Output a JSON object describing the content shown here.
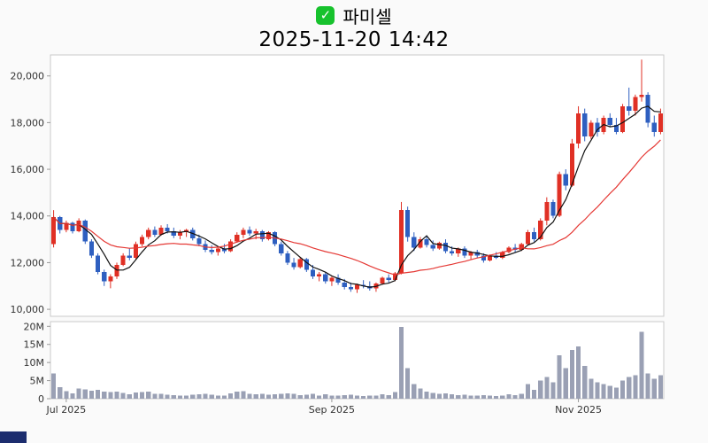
{
  "header": {
    "icon_glyph": "✓"
  },
  "colors": {
    "checkbox": "#17c22d",
    "corner_fragment": "#1c2d6e"
  },
  "chart_data": {
    "type": "candlestick",
    "title": "파미셀",
    "subtitle": "2025-11-20 14:42",
    "price_axis": {
      "min": 9700,
      "max": 20900,
      "ticks": [
        10000,
        12000,
        14000,
        16000,
        18000,
        20000
      ],
      "tick_labels": [
        "10,000",
        "12,000",
        "14,000",
        "16,000",
        "18,000",
        "20,000"
      ]
    },
    "volume_axis": {
      "unit": "M",
      "max": 21.3,
      "ticks": [
        0,
        5,
        10,
        15,
        20
      ],
      "tick_labels": [
        "0",
        "5M",
        "10M",
        "15M",
        "20M"
      ]
    },
    "x_ticks": [
      {
        "label": "Jul 2025",
        "index": 2
      },
      {
        "label": "Sep 2025",
        "index": 44
      },
      {
        "label": "Nov 2025",
        "index": 83
      }
    ],
    "ma_lines": [
      {
        "period": 5,
        "color": "#111111"
      },
      {
        "period": 20,
        "color": "#e53935"
      }
    ],
    "colors": {
      "up": "#e03025",
      "down": "#2e5fc0",
      "volume": "#9aa0b4",
      "plot_border": "#c9c9c9",
      "grid": "none"
    },
    "legend": "none",
    "candles_format": [
      "open",
      "high",
      "low",
      "close",
      "volume_millions"
    ],
    "candles": [
      [
        12800,
        14250,
        12650,
        13950,
        7.0
      ],
      [
        13950,
        14000,
        13250,
        13400,
        3.2
      ],
      [
        13400,
        13800,
        13300,
        13700,
        2.1
      ],
      [
        13700,
        13750,
        13250,
        13350,
        1.5
      ],
      [
        13350,
        13900,
        13300,
        13800,
        2.8
      ],
      [
        13800,
        13850,
        12800,
        12900,
        2.6
      ],
      [
        12900,
        13000,
        12200,
        12300,
        2.2
      ],
      [
        12300,
        12400,
        11500,
        11600,
        2.4
      ],
      [
        11600,
        11700,
        11000,
        11200,
        2.0
      ],
      [
        11200,
        11500,
        10900,
        11400,
        1.8
      ],
      [
        11400,
        12000,
        11300,
        11900,
        1.9
      ],
      [
        11900,
        12400,
        11850,
        12300,
        1.6
      ],
      [
        12300,
        12600,
        12100,
        12200,
        1.2
      ],
      [
        12200,
        12900,
        12150,
        12800,
        1.7
      ],
      [
        12800,
        13200,
        12700,
        13100,
        1.8
      ],
      [
        13100,
        13500,
        13000,
        13400,
        1.9
      ],
      [
        13400,
        13550,
        13100,
        13200,
        1.3
      ],
      [
        13200,
        13600,
        13150,
        13500,
        1.4
      ],
      [
        13500,
        13650,
        13250,
        13350,
        1.1
      ],
      [
        13350,
        13500,
        13050,
        13150,
        1.0
      ],
      [
        13150,
        13400,
        13000,
        13300,
        0.9
      ],
      [
        13300,
        13450,
        13100,
        13400,
        0.8
      ],
      [
        13400,
        13500,
        12950,
        13050,
        1.1
      ],
      [
        13050,
        13200,
        12700,
        12800,
        1.2
      ],
      [
        12800,
        12950,
        12450,
        12550,
        1.3
      ],
      [
        12550,
        12750,
        12350,
        12450,
        1.1
      ],
      [
        12450,
        12650,
        12300,
        12600,
        0.9
      ],
      [
        12600,
        12800,
        12400,
        12500,
        0.8
      ],
      [
        12500,
        13000,
        12450,
        12900,
        1.5
      ],
      [
        12900,
        13300,
        12850,
        13200,
        1.9
      ],
      [
        13200,
        13500,
        13050,
        13400,
        2.1
      ],
      [
        13400,
        13550,
        13150,
        13250,
        1.4
      ],
      [
        13250,
        13450,
        13000,
        13350,
        1.2
      ],
      [
        13350,
        13400,
        12900,
        13000,
        1.3
      ],
      [
        13000,
        13350,
        12950,
        13300,
        1.1
      ],
      [
        13300,
        13350,
        12700,
        12800,
        1.2
      ],
      [
        12800,
        12900,
        12300,
        12400,
        1.4
      ],
      [
        12400,
        12500,
        11900,
        12000,
        1.5
      ],
      [
        12000,
        12200,
        11700,
        11800,
        1.3
      ],
      [
        11800,
        12250,
        11750,
        12150,
        1.0
      ],
      [
        12150,
        12200,
        11600,
        11700,
        1.1
      ],
      [
        11700,
        11900,
        11300,
        11400,
        1.3
      ],
      [
        11400,
        11600,
        11200,
        11500,
        0.9
      ],
      [
        11500,
        11600,
        11100,
        11200,
        1.2
      ],
      [
        11200,
        11400,
        11000,
        11350,
        0.9
      ],
      [
        11350,
        11500,
        11050,
        11150,
        0.8
      ],
      [
        11150,
        11300,
        10850,
        10950,
        1.0
      ],
      [
        10950,
        11150,
        10750,
        10850,
        1.1
      ],
      [
        10850,
        11100,
        10700,
        11050,
        0.9
      ],
      [
        11050,
        11250,
        10900,
        11000,
        0.7
      ],
      [
        11000,
        11200,
        10800,
        10900,
        0.8
      ],
      [
        10900,
        11150,
        10750,
        11100,
        0.9
      ],
      [
        11100,
        11400,
        11050,
        11350,
        1.2
      ],
      [
        11350,
        11500,
        11150,
        11250,
        1.0
      ],
      [
        11250,
        11600,
        11200,
        11550,
        1.8
      ],
      [
        11550,
        14600,
        11500,
        14250,
        19.8
      ],
      [
        14250,
        14400,
        12900,
        13100,
        8.5
      ],
      [
        13100,
        13300,
        12500,
        12650,
        4.0
      ],
      [
        12650,
        13100,
        12600,
        13000,
        2.8
      ],
      [
        13000,
        13150,
        12650,
        12750,
        2.0
      ],
      [
        12750,
        12950,
        12500,
        12600,
        1.6
      ],
      [
        12600,
        12900,
        12550,
        12850,
        1.4
      ],
      [
        12850,
        13000,
        12400,
        12500,
        1.5
      ],
      [
        12500,
        12700,
        12300,
        12400,
        1.2
      ],
      [
        12400,
        12650,
        12250,
        12600,
        1.0
      ],
      [
        12600,
        12700,
        12200,
        12300,
        1.1
      ],
      [
        12300,
        12500,
        12150,
        12450,
        0.9
      ],
      [
        12450,
        12550,
        12200,
        12300,
        0.8
      ],
      [
        12300,
        12400,
        12000,
        12100,
        1.0
      ],
      [
        12100,
        12350,
        12050,
        12300,
        0.9
      ],
      [
        12300,
        12450,
        12150,
        12200,
        0.7
      ],
      [
        12200,
        12500,
        12150,
        12450,
        0.9
      ],
      [
        12450,
        12700,
        12400,
        12650,
        1.2
      ],
      [
        12650,
        12800,
        12450,
        12550,
        1.0
      ],
      [
        12550,
        12850,
        12500,
        12800,
        1.3
      ],
      [
        12800,
        13400,
        12750,
        13300,
        4.0
      ],
      [
        13300,
        13500,
        12900,
        13000,
        2.5
      ],
      [
        13000,
        13900,
        12950,
        13800,
        5.0
      ],
      [
        13800,
        14800,
        13600,
        14600,
        6.0
      ],
      [
        14600,
        14700,
        13900,
        14000,
        4.5
      ],
      [
        14000,
        15900,
        13950,
        15800,
        12.0
      ],
      [
        15800,
        16000,
        15100,
        15300,
        8.5
      ],
      [
        15300,
        17300,
        15250,
        17100,
        13.5
      ],
      [
        17100,
        18700,
        16900,
        18400,
        14.5
      ],
      [
        18400,
        18600,
        17200,
        17400,
        9.0
      ],
      [
        17400,
        18100,
        17300,
        18000,
        5.5
      ],
      [
        18000,
        18200,
        17400,
        17600,
        4.5
      ],
      [
        17600,
        18300,
        17500,
        18200,
        4.0
      ],
      [
        18200,
        18400,
        17800,
        17900,
        3.5
      ],
      [
        17900,
        18200,
        17500,
        17600,
        3.0
      ],
      [
        17600,
        18800,
        17550,
        18700,
        5.0
      ],
      [
        18700,
        19500,
        18300,
        18500,
        6.0
      ],
      [
        18500,
        19200,
        18300,
        19100,
        6.5
      ],
      [
        19100,
        20700,
        18900,
        19200,
        18.5
      ],
      [
        19200,
        19300,
        17800,
        18000,
        7.0
      ],
      [
        18000,
        18300,
        17400,
        17600,
        5.5
      ],
      [
        17600,
        18600,
        17500,
        18400,
        6.5
      ]
    ]
  }
}
